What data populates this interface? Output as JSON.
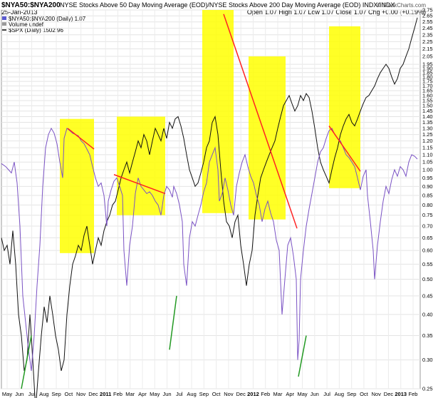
{
  "header": {
    "symbol": "$NYA50:$NYA200",
    "description": "NYSE Stocks Above 50 Day Moving Average (EOD)/NYSE Stocks Above 200 Day Moving Average (EOD) INDX/INDX",
    "date": "25-Jan-2013",
    "ohlc": "Open 1.07  High 1.07  Low 1.07  Close 1.07  Chg +0.00 (+0.19%)",
    "brand": "© StockCharts.com"
  },
  "legend": [
    {
      "label": "$NYA50:$NYA200 (Daily) 1.07",
      "color": "#5a5ad0"
    },
    {
      "label": "Volume undef",
      "color": "#999999"
    },
    {
      "label": "$SPX (Daily) 1502.96",
      "color": "#000000"
    }
  ],
  "chart_data": {
    "type": "line",
    "y_axis_labels": [
      "2.75",
      "2.65",
      "2.55",
      "2.45",
      "2.35",
      "2.25",
      "2.15",
      "2.05",
      "1.95",
      "1.90",
      "1.85",
      "1.80",
      "1.75",
      "1.70",
      "1.65",
      "1.60",
      "1.55",
      "1.50",
      "1.45",
      "1.40",
      "1.35",
      "1.30",
      "1.25",
      "1.20",
      "1.15",
      "1.10",
      "1.05",
      "1.00",
      "0.95",
      "0.90",
      "0.85",
      "0.80",
      "0.75",
      "0.70",
      "0.65",
      "0.60",
      "0.55",
      "0.50",
      "0.45",
      "0.40",
      "0.35",
      "0.30",
      "0.25"
    ],
    "x_axis_labels": [
      "May",
      "Jun",
      "Jul",
      "Aug",
      "Sep",
      "Oct",
      "Nov",
      "Dec",
      "2011",
      "Feb",
      "Mar",
      "Apr",
      "May",
      "Jun",
      "Jul",
      "Aug",
      "Sep",
      "Oct",
      "Nov",
      "Dec",
      "2012",
      "Feb",
      "Mar",
      "Apr",
      "May",
      "Jun",
      "Jul",
      "Aug",
      "Sep",
      "Oct",
      "Nov",
      "Dec",
      "2013",
      "Feb"
    ],
    "ratio_series": {
      "name": "$NYA50:$NYA200",
      "points": [
        [
          0,
          1.04
        ],
        [
          6,
          1.02
        ],
        [
          10,
          1.0
        ],
        [
          14,
          0.98
        ],
        [
          18,
          1.05
        ],
        [
          22,
          0.92
        ],
        [
          26,
          0.7
        ],
        [
          30,
          0.45
        ],
        [
          34,
          0.38
        ],
        [
          38,
          0.32
        ],
        [
          42,
          0.28
        ],
        [
          46,
          0.35
        ],
        [
          50,
          0.48
        ],
        [
          54,
          0.62
        ],
        [
          58,
          0.9
        ],
        [
          62,
          1.15
        ],
        [
          66,
          1.25
        ],
        [
          70,
          1.3
        ],
        [
          74,
          1.26
        ],
        [
          78,
          1.18
        ],
        [
          82,
          1.05
        ],
        [
          86,
          0.95
        ],
        [
          88,
          1.22
        ],
        [
          92,
          1.3
        ],
        [
          96,
          1.28
        ],
        [
          100,
          1.26
        ],
        [
          104,
          1.25
        ],
        [
          108,
          1.24
        ],
        [
          112,
          1.2
        ],
        [
          116,
          1.18
        ],
        [
          120,
          1.14
        ],
        [
          124,
          1.1
        ],
        [
          128,
          1.02
        ],
        [
          132,
          0.95
        ],
        [
          136,
          0.9
        ],
        [
          140,
          0.92
        ],
        [
          144,
          0.85
        ],
        [
          148,
          0.7
        ],
        [
          150,
          0.82
        ],
        [
          154,
          0.88
        ],
        [
          158,
          0.93
        ],
        [
          162,
          0.95
        ],
        [
          166,
          0.9
        ],
        [
          170,
          0.85
        ],
        [
          172,
          0.6
        ],
        [
          176,
          0.48
        ],
        [
          180,
          0.62
        ],
        [
          184,
          0.7
        ],
        [
          188,
          0.86
        ],
        [
          192,
          0.95
        ],
        [
          196,
          0.9
        ],
        [
          200,
          0.88
        ],
        [
          204,
          0.86
        ],
        [
          208,
          0.87
        ],
        [
          212,
          0.85
        ],
        [
          216,
          0.82
        ],
        [
          220,
          0.8
        ],
        [
          224,
          0.75
        ],
        [
          228,
          0.85
        ],
        [
          232,
          0.9
        ],
        [
          236,
          0.88
        ],
        [
          240,
          0.84
        ],
        [
          242,
          0.9
        ],
        [
          246,
          0.86
        ],
        [
          250,
          0.8
        ],
        [
          254,
          0.72
        ],
        [
          256,
          0.55
        ],
        [
          260,
          0.48
        ],
        [
          264,
          0.65
        ],
        [
          268,
          0.72
        ],
        [
          272,
          0.7
        ],
        [
          276,
          0.75
        ],
        [
          280,
          0.8
        ],
        [
          284,
          0.87
        ],
        [
          288,
          0.92
        ],
        [
          292,
          1.05
        ],
        [
          296,
          1.1
        ],
        [
          300,
          1.15
        ],
        [
          304,
          1.0
        ],
        [
          306,
          0.82
        ],
        [
          310,
          0.86
        ],
        [
          314,
          0.95
        ],
        [
          318,
          0.88
        ],
        [
          322,
          0.8
        ],
        [
          326,
          0.75
        ],
        [
          330,
          0.9
        ],
        [
          334,
          0.98
        ],
        [
          338,
          1.05
        ],
        [
          342,
          1.1
        ],
        [
          346,
          1.02
        ],
        [
          350,
          0.96
        ],
        [
          354,
          0.92
        ],
        [
          358,
          0.85
        ],
        [
          362,
          0.8
        ],
        [
          366,
          0.72
        ],
        [
          370,
          0.78
        ],
        [
          374,
          0.82
        ],
        [
          378,
          0.76
        ],
        [
          382,
          0.72
        ],
        [
          386,
          0.64
        ],
        [
          390,
          0.6
        ],
        [
          394,
          0.4
        ],
        [
          398,
          0.5
        ],
        [
          402,
          0.62
        ],
        [
          406,
          0.65
        ],
        [
          410,
          0.58
        ],
        [
          414,
          0.5
        ],
        [
          416,
          0.3
        ],
        [
          418,
          0.34
        ],
        [
          420,
          0.5
        ],
        [
          424,
          0.6
        ],
        [
          428,
          0.7
        ],
        [
          432,
          0.78
        ],
        [
          436,
          0.86
        ],
        [
          440,
          0.95
        ],
        [
          444,
          1.05
        ],
        [
          448,
          1.12
        ],
        [
          452,
          1.15
        ],
        [
          456,
          1.22
        ],
        [
          460,
          1.28
        ],
        [
          464,
          1.3
        ],
        [
          468,
          1.25
        ],
        [
          472,
          1.22
        ],
        [
          476,
          1.2
        ],
        [
          480,
          1.15
        ],
        [
          484,
          1.1
        ],
        [
          488,
          1.08
        ],
        [
          492,
          1.05
        ],
        [
          496,
          1.02
        ],
        [
          500,
          0.95
        ],
        [
          504,
          0.88
        ],
        [
          508,
          0.96
        ],
        [
          512,
          1.0
        ],
        [
          514,
          0.85
        ],
        [
          518,
          0.72
        ],
        [
          522,
          0.6
        ],
        [
          524,
          0.5
        ],
        [
          528,
          0.62
        ],
        [
          532,
          0.72
        ],
        [
          536,
          0.82
        ],
        [
          540,
          0.9
        ],
        [
          544,
          0.86
        ],
        [
          548,
          0.94
        ],
        [
          552,
          1.0
        ],
        [
          556,
          0.96
        ],
        [
          560,
          1.02
        ],
        [
          564,
          1.0
        ],
        [
          568,
          0.96
        ],
        [
          572,
          1.05
        ],
        [
          576,
          1.1
        ],
        [
          580,
          1.09
        ],
        [
          584,
          1.07
        ]
      ]
    },
    "spx_series": {
      "name": "$SPX",
      "points": [
        [
          0,
          0.65
        ],
        [
          4,
          0.6
        ],
        [
          8,
          0.62
        ],
        [
          12,
          0.55
        ],
        [
          16,
          0.68
        ],
        [
          20,
          0.55
        ],
        [
          24,
          0.4
        ],
        [
          28,
          0.35
        ],
        [
          32,
          0.28
        ],
        [
          36,
          0.3
        ],
        [
          40,
          0.4
        ],
        [
          44,
          0.3
        ],
        [
          48,
          0.22
        ],
        [
          52,
          0.28
        ],
        [
          56,
          0.35
        ],
        [
          60,
          0.42
        ],
        [
          64,
          0.38
        ],
        [
          68,
          0.45
        ],
        [
          72,
          0.4
        ],
        [
          76,
          0.35
        ],
        [
          80,
          0.32
        ],
        [
          84,
          0.28
        ],
        [
          88,
          0.3
        ],
        [
          92,
          0.4
        ],
        [
          96,
          0.48
        ],
        [
          100,
          0.55
        ],
        [
          104,
          0.58
        ],
        [
          108,
          0.62
        ],
        [
          112,
          0.6
        ],
        [
          116,
          0.66
        ],
        [
          120,
          0.7
        ],
        [
          124,
          0.62
        ],
        [
          128,
          0.55
        ],
        [
          132,
          0.6
        ],
        [
          136,
          0.65
        ],
        [
          140,
          0.62
        ],
        [
          144,
          0.68
        ],
        [
          148,
          0.72
        ],
        [
          152,
          0.75
        ],
        [
          156,
          0.8
        ],
        [
          160,
          0.82
        ],
        [
          164,
          0.88
        ],
        [
          168,
          0.95
        ],
        [
          172,
          1.0
        ],
        [
          176,
          1.05
        ],
        [
          180,
          0.98
        ],
        [
          184,
          1.05
        ],
        [
          188,
          1.12
        ],
        [
          192,
          1.2
        ],
        [
          196,
          1.15
        ],
        [
          200,
          1.25
        ],
        [
          204,
          1.2
        ],
        [
          208,
          1.1
        ],
        [
          212,
          1.2
        ],
        [
          216,
          1.3
        ],
        [
          220,
          1.25
        ],
        [
          224,
          1.2
        ],
        [
          228,
          1.3
        ],
        [
          232,
          1.22
        ],
        [
          236,
          1.35
        ],
        [
          240,
          1.3
        ],
        [
          244,
          1.38
        ],
        [
          248,
          1.4
        ],
        [
          252,
          1.32
        ],
        [
          256,
          1.22
        ],
        [
          260,
          1.1
        ],
        [
          264,
          1.0
        ],
        [
          268,
          0.95
        ],
        [
          272,
          0.9
        ],
        [
          276,
          0.92
        ],
        [
          280,
          0.98
        ],
        [
          284,
          1.05
        ],
        [
          288,
          1.15
        ],
        [
          292,
          1.2
        ],
        [
          296,
          1.35
        ],
        [
          300,
          1.4
        ],
        [
          304,
          1.25
        ],
        [
          308,
          1.0
        ],
        [
          312,
          0.82
        ],
        [
          316,
          0.72
        ],
        [
          320,
          0.7
        ],
        [
          324,
          0.65
        ],
        [
          328,
          0.72
        ],
        [
          332,
          0.75
        ],
        [
          336,
          0.62
        ],
        [
          340,
          0.55
        ],
        [
          344,
          0.48
        ],
        [
          348,
          0.55
        ],
        [
          352,
          0.6
        ],
        [
          356,
          0.75
        ],
        [
          360,
          0.85
        ],
        [
          364,
          0.95
        ],
        [
          368,
          1.0
        ],
        [
          372,
          1.05
        ],
        [
          376,
          1.1
        ],
        [
          380,
          1.15
        ],
        [
          384,
          1.2
        ],
        [
          388,
          1.3
        ],
        [
          392,
          1.4
        ],
        [
          396,
          1.5
        ],
        [
          400,
          1.55
        ],
        [
          404,
          1.6
        ],
        [
          408,
          1.52
        ],
        [
          412,
          1.45
        ],
        [
          416,
          1.5
        ],
        [
          420,
          1.6
        ],
        [
          424,
          1.55
        ],
        [
          428,
          1.62
        ],
        [
          432,
          1.58
        ],
        [
          436,
          1.45
        ],
        [
          440,
          1.3
        ],
        [
          444,
          1.15
        ],
        [
          448,
          1.05
        ],
        [
          452,
          1.0
        ],
        [
          456,
          0.96
        ],
        [
          460,
          0.92
        ],
        [
          464,
          1.0
        ],
        [
          468,
          1.08
        ],
        [
          472,
          1.15
        ],
        [
          476,
          1.25
        ],
        [
          480,
          1.32
        ],
        [
          484,
          1.38
        ],
        [
          488,
          1.42
        ],
        [
          492,
          1.35
        ],
        [
          496,
          1.32
        ],
        [
          500,
          1.38
        ],
        [
          504,
          1.45
        ],
        [
          508,
          1.52
        ],
        [
          512,
          1.58
        ],
        [
          516,
          1.6
        ],
        [
          520,
          1.65
        ],
        [
          524,
          1.7
        ],
        [
          528,
          1.78
        ],
        [
          532,
          1.85
        ],
        [
          536,
          1.9
        ],
        [
          540,
          1.95
        ],
        [
          544,
          1.9
        ],
        [
          548,
          1.8
        ],
        [
          552,
          1.72
        ],
        [
          556,
          1.78
        ],
        [
          560,
          1.9
        ],
        [
          564,
          1.95
        ],
        [
          568,
          2.05
        ],
        [
          572,
          2.15
        ],
        [
          576,
          2.3
        ],
        [
          580,
          2.45
        ],
        [
          584,
          2.62
        ]
      ]
    }
  }
}
